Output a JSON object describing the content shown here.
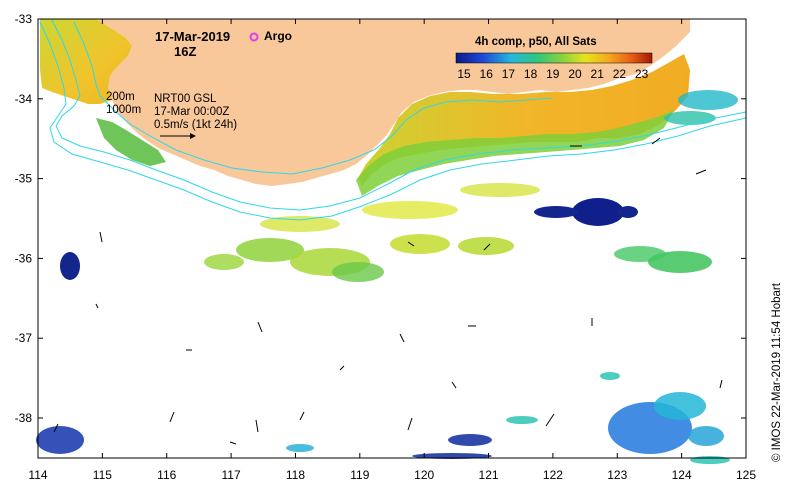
{
  "map": {
    "date": "17-Mar-2019",
    "hour": "16Z",
    "argo_label": "Argo",
    "argo_color": "#e23ee6",
    "legend_title": "4h comp, p50, All Sats",
    "legend_ticks": [
      "15",
      "16",
      "17",
      "18",
      "19",
      "20",
      "21",
      "22",
      "23"
    ],
    "depth_labels": [
      "200m",
      "1000m"
    ],
    "contour_color": "#2fd8e6",
    "land_color": "#f9c89a",
    "current_source": "NRT00 GSL",
    "current_time": "17-Mar 00:00Z",
    "current_scale": "0.5m/s (1kt 24h)",
    "x_ticks": [
      "114",
      "115",
      "116",
      "117",
      "118",
      "119",
      "120",
      "121",
      "122",
      "123",
      "124",
      "125"
    ],
    "y_ticks": [
      "-33",
      "-34",
      "-35",
      "-36",
      "-37",
      "-38"
    ],
    "credit": "© IMOS 22-Mar-2019 11:54 Hobart"
  }
}
